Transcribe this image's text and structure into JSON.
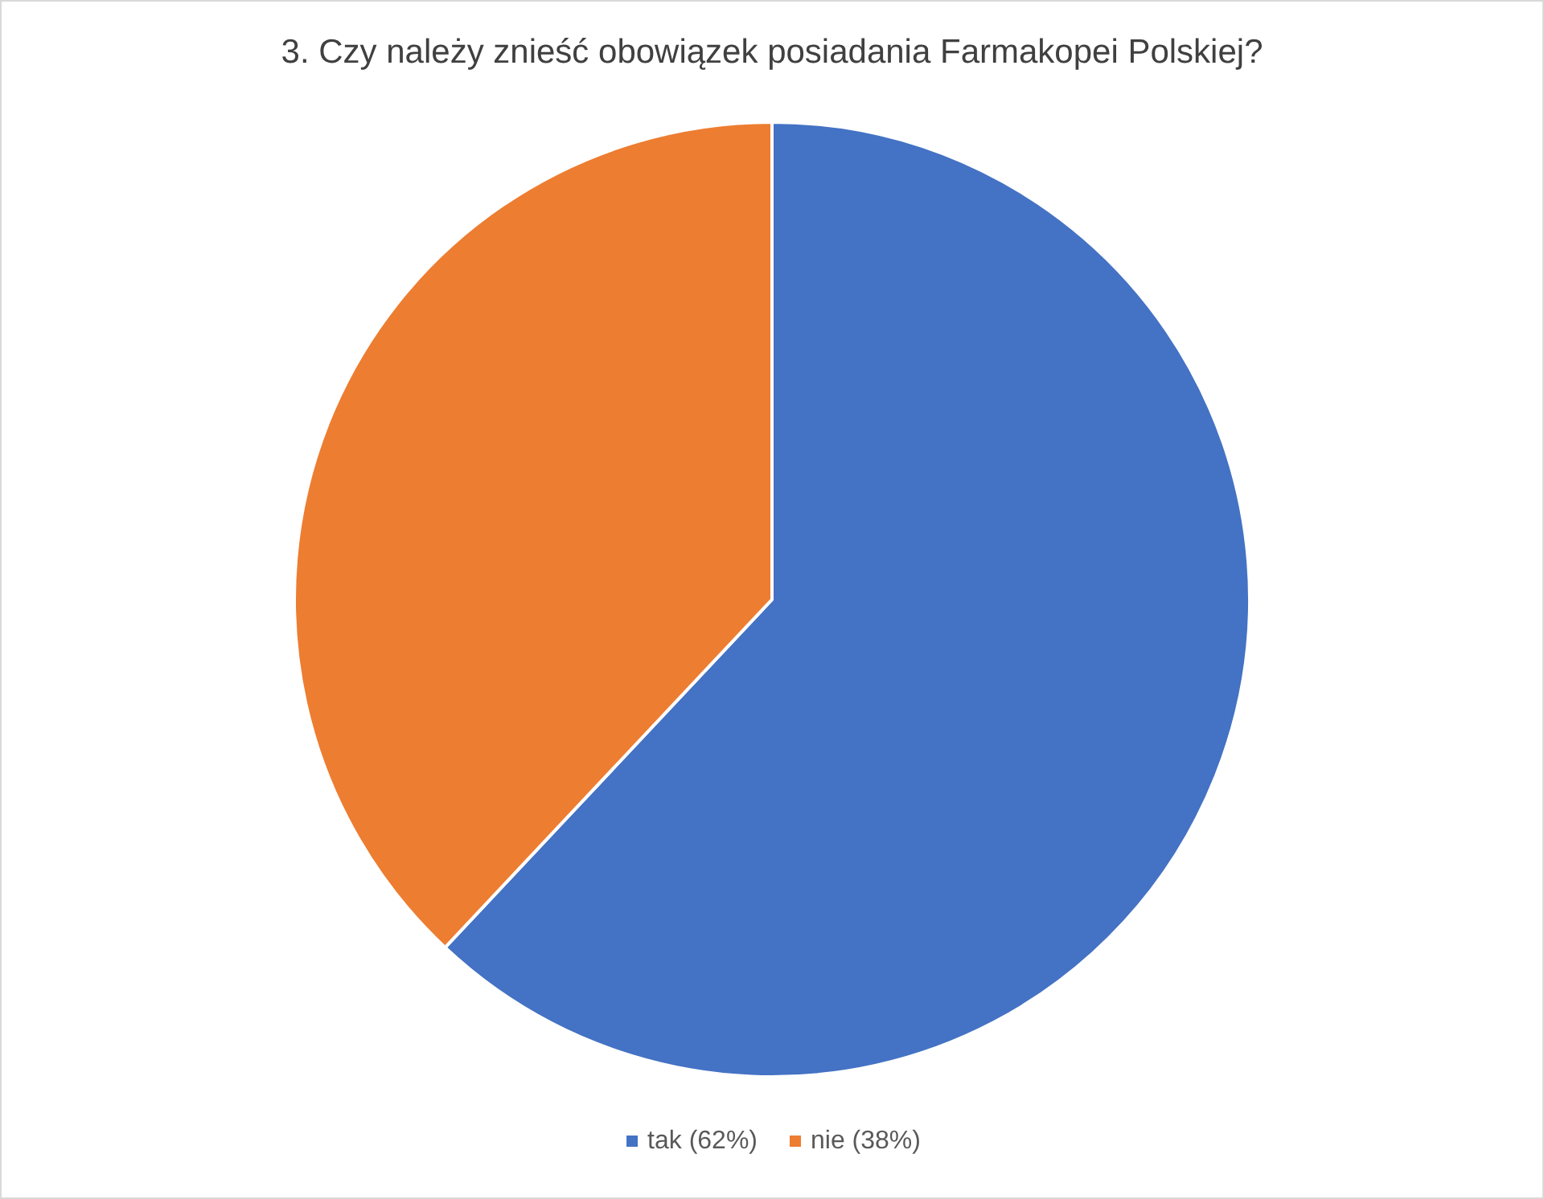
{
  "chart_data": {
    "type": "pie",
    "title": "3. Czy należy znieść obowiązek posiadania Farmakopei Polskiej?",
    "categories": [
      "tak (62%)",
      "nie (38%)"
    ],
    "values": [
      62,
      38
    ],
    "colors": [
      "#4472c4",
      "#ed7d31"
    ],
    "legend": "bottom"
  }
}
